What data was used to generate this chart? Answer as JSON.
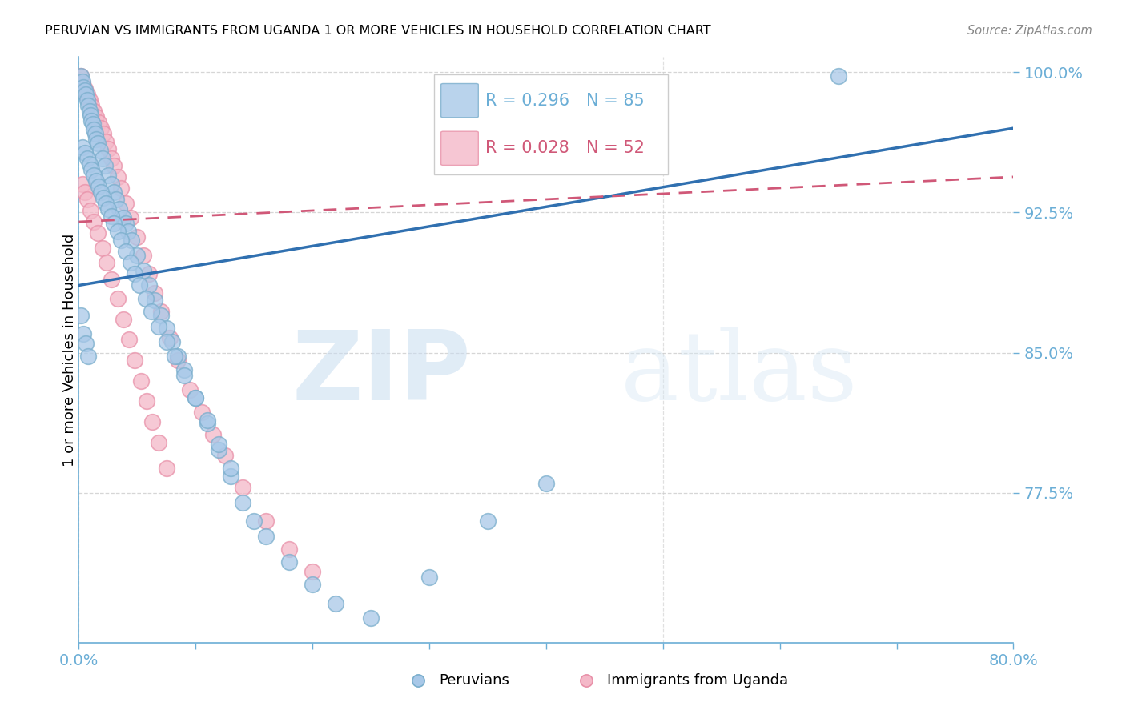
{
  "title": "PERUVIAN VS IMMIGRANTS FROM UGANDA 1 OR MORE VEHICLES IN HOUSEHOLD CORRELATION CHART",
  "source": "Source: ZipAtlas.com",
  "ylabel": "1 or more Vehicles in Household",
  "xlim": [
    0.0,
    0.8
  ],
  "ylim": [
    0.695,
    1.008
  ],
  "yticks": [
    1.0,
    0.925,
    0.85,
    0.775
  ],
  "ytick_labels": [
    "100.0%",
    "92.5%",
    "85.0%",
    "77.5%"
  ],
  "xticks": [
    0.0,
    0.1,
    0.2,
    0.3,
    0.4,
    0.5,
    0.6,
    0.7,
    0.8
  ],
  "xtick_labels": [
    "0.0%",
    "",
    "",
    "",
    "",
    "",
    "",
    "",
    "80.0%"
  ],
  "blue_color": "#a8c8e8",
  "pink_color": "#f4b8c8",
  "blue_edge_color": "#7aaecc",
  "pink_edge_color": "#e890a8",
  "blue_line_color": "#3070b0",
  "pink_line_color": "#d05878",
  "axis_color": "#6baed6",
  "grid_color": "#cccccc",
  "watermark_zip": "ZIP",
  "watermark_atlas": "atlas",
  "legend_box_color": "#ffffff",
  "blue_scatter_x": [
    0.002,
    0.003,
    0.004,
    0.005,
    0.006,
    0.007,
    0.008,
    0.009,
    0.01,
    0.011,
    0.012,
    0.013,
    0.014,
    0.015,
    0.016,
    0.018,
    0.02,
    0.022,
    0.025,
    0.028,
    0.03,
    0.032,
    0.035,
    0.038,
    0.04,
    0.042,
    0.045,
    0.05,
    0.055,
    0.06,
    0.065,
    0.07,
    0.075,
    0.08,
    0.085,
    0.09,
    0.1,
    0.11,
    0.12,
    0.13,
    0.14,
    0.15,
    0.16,
    0.18,
    0.2,
    0.22,
    0.25,
    0.3,
    0.35,
    0.4,
    0.003,
    0.005,
    0.007,
    0.009,
    0.011,
    0.013,
    0.015,
    0.017,
    0.019,
    0.021,
    0.023,
    0.025,
    0.028,
    0.03,
    0.033,
    0.036,
    0.04,
    0.044,
    0.048,
    0.052,
    0.057,
    0.062,
    0.068,
    0.075,
    0.082,
    0.09,
    0.1,
    0.11,
    0.12,
    0.13,
    0.002,
    0.004,
    0.006,
    0.008,
    0.65
  ],
  "blue_scatter_y": [
    0.998,
    0.995,
    0.992,
    0.99,
    0.988,
    0.985,
    0.982,
    0.979,
    0.977,
    0.974,
    0.972,
    0.969,
    0.967,
    0.964,
    0.962,
    0.958,
    0.954,
    0.95,
    0.945,
    0.94,
    0.936,
    0.932,
    0.927,
    0.922,
    0.919,
    0.915,
    0.91,
    0.902,
    0.894,
    0.886,
    0.878,
    0.87,
    0.863,
    0.856,
    0.848,
    0.841,
    0.826,
    0.812,
    0.798,
    0.784,
    0.77,
    0.76,
    0.752,
    0.738,
    0.726,
    0.716,
    0.708,
    0.73,
    0.76,
    0.78,
    0.96,
    0.957,
    0.954,
    0.951,
    0.948,
    0.945,
    0.942,
    0.939,
    0.936,
    0.933,
    0.93,
    0.927,
    0.923,
    0.919,
    0.915,
    0.91,
    0.904,
    0.898,
    0.892,
    0.886,
    0.879,
    0.872,
    0.864,
    0.856,
    0.848,
    0.838,
    0.826,
    0.814,
    0.801,
    0.788,
    0.87,
    0.86,
    0.855,
    0.848,
    0.998
  ],
  "pink_scatter_x": [
    0.002,
    0.003,
    0.005,
    0.007,
    0.009,
    0.011,
    0.013,
    0.015,
    0.017,
    0.019,
    0.021,
    0.023,
    0.025,
    0.028,
    0.03,
    0.033,
    0.036,
    0.04,
    0.044,
    0.05,
    0.055,
    0.06,
    0.065,
    0.07,
    0.078,
    0.085,
    0.095,
    0.105,
    0.115,
    0.125,
    0.14,
    0.16,
    0.18,
    0.2,
    0.003,
    0.005,
    0.007,
    0.01,
    0.013,
    0.016,
    0.02,
    0.024,
    0.028,
    0.033,
    0.038,
    0.043,
    0.048,
    0.053,
    0.058,
    0.063,
    0.068,
    0.075
  ],
  "pink_scatter_y": [
    0.998,
    0.994,
    0.991,
    0.988,
    0.985,
    0.982,
    0.979,
    0.976,
    0.973,
    0.97,
    0.967,
    0.963,
    0.959,
    0.954,
    0.95,
    0.944,
    0.938,
    0.93,
    0.922,
    0.912,
    0.902,
    0.892,
    0.882,
    0.872,
    0.858,
    0.846,
    0.83,
    0.818,
    0.806,
    0.795,
    0.778,
    0.76,
    0.745,
    0.733,
    0.94,
    0.936,
    0.932,
    0.926,
    0.92,
    0.914,
    0.906,
    0.898,
    0.889,
    0.879,
    0.868,
    0.857,
    0.846,
    0.835,
    0.824,
    0.813,
    0.802,
    0.788
  ],
  "blue_trend_x": [
    0.0,
    0.8
  ],
  "blue_trend_y": [
    0.886,
    0.97
  ],
  "pink_trend_x": [
    0.0,
    0.8
  ],
  "pink_trend_y": [
    0.92,
    0.944
  ]
}
